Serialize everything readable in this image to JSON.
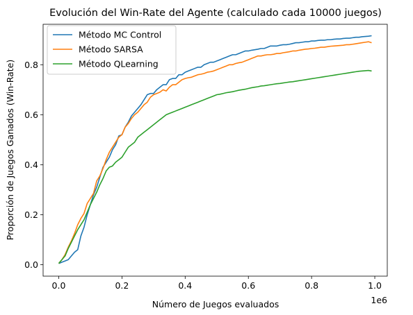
{
  "chart_data": {
    "type": "line",
    "title": "Evolución del Win-Rate del Agente (calculado cada 10000 juegos)",
    "xlabel": "Número de Juegos evaluados",
    "ylabel": "Proporción de Juegos Ganados (Win-Rate)",
    "x_offset_label": "1e6",
    "xlim": [
      -0.0495,
      1.0395
    ],
    "ylim": [
      -0.0458,
      0.9618
    ],
    "xticks": [
      0.0,
      0.2,
      0.4,
      0.6,
      0.8,
      1.0
    ],
    "xtick_labels": [
      "0.0",
      "0.2",
      "0.4",
      "0.6",
      "0.8",
      "1.0"
    ],
    "yticks": [
      0.0,
      0.2,
      0.4,
      0.6,
      0.8
    ],
    "ytick_labels": [
      "0.0",
      "0.2",
      "0.4",
      "0.6",
      "0.8"
    ],
    "grid": false,
    "legend_position": "top-left",
    "x": [
      0,
      0.01,
      0.02,
      0.03,
      0.04,
      0.05,
      0.06,
      0.07,
      0.08,
      0.09,
      0.1,
      0.11,
      0.12,
      0.13,
      0.14,
      0.15,
      0.16,
      0.17,
      0.18,
      0.19,
      0.2,
      0.21,
      0.22,
      0.23,
      0.24,
      0.25,
      0.26,
      0.27,
      0.28,
      0.29,
      0.3,
      0.31,
      0.32,
      0.33,
      0.34,
      0.35,
      0.36,
      0.37,
      0.38,
      0.39,
      0.4,
      0.41,
      0.42,
      0.43,
      0.44,
      0.45,
      0.46,
      0.47,
      0.48,
      0.49,
      0.5,
      0.51,
      0.52,
      0.53,
      0.54,
      0.55,
      0.56,
      0.57,
      0.58,
      0.59,
      0.6,
      0.61,
      0.62,
      0.63,
      0.64,
      0.65,
      0.66,
      0.67,
      0.68,
      0.69,
      0.7,
      0.71,
      0.72,
      0.73,
      0.74,
      0.75,
      0.76,
      0.77,
      0.78,
      0.79,
      0.8,
      0.81,
      0.82,
      0.83,
      0.84,
      0.85,
      0.86,
      0.87,
      0.88,
      0.89,
      0.9,
      0.91,
      0.92,
      0.93,
      0.94,
      0.95,
      0.96,
      0.97,
      0.98,
      0.99
    ],
    "series": [
      {
        "name": "Método MC Control",
        "color": "#1f77b4",
        "values": [
          0.005,
          0.01,
          0.015,
          0.02,
          0.035,
          0.05,
          0.06,
          0.115,
          0.15,
          0.2,
          0.24,
          0.28,
          0.31,
          0.35,
          0.39,
          0.41,
          0.43,
          0.46,
          0.48,
          0.515,
          0.52,
          0.55,
          0.57,
          0.595,
          0.61,
          0.625,
          0.64,
          0.66,
          0.68,
          0.685,
          0.685,
          0.7,
          0.71,
          0.72,
          0.72,
          0.74,
          0.745,
          0.745,
          0.76,
          0.76,
          0.77,
          0.775,
          0.78,
          0.785,
          0.79,
          0.79,
          0.8,
          0.805,
          0.81,
          0.81,
          0.815,
          0.82,
          0.825,
          0.83,
          0.835,
          0.84,
          0.84,
          0.845,
          0.85,
          0.855,
          0.855,
          0.858,
          0.86,
          0.862,
          0.865,
          0.865,
          0.87,
          0.875,
          0.875,
          0.875,
          0.878,
          0.88,
          0.88,
          0.882,
          0.885,
          0.888,
          0.888,
          0.89,
          0.892,
          0.892,
          0.895,
          0.895,
          0.897,
          0.898,
          0.898,
          0.9,
          0.9,
          0.902,
          0.903,
          0.903,
          0.905,
          0.906,
          0.906,
          0.908,
          0.91,
          0.91,
          0.912,
          0.913,
          0.914,
          0.916
        ]
      },
      {
        "name": "Método SARSA",
        "color": "#ff7f0e",
        "values": [
          0.005,
          0.02,
          0.04,
          0.07,
          0.095,
          0.125,
          0.16,
          0.185,
          0.205,
          0.245,
          0.265,
          0.285,
          0.335,
          0.355,
          0.385,
          0.42,
          0.45,
          0.47,
          0.49,
          0.51,
          0.52,
          0.55,
          0.565,
          0.585,
          0.6,
          0.61,
          0.625,
          0.64,
          0.65,
          0.67,
          0.68,
          0.685,
          0.69,
          0.7,
          0.695,
          0.71,
          0.72,
          0.72,
          0.73,
          0.74,
          0.745,
          0.748,
          0.75,
          0.755,
          0.76,
          0.762,
          0.765,
          0.77,
          0.772,
          0.775,
          0.78,
          0.785,
          0.79,
          0.795,
          0.8,
          0.8,
          0.805,
          0.808,
          0.81,
          0.815,
          0.82,
          0.825,
          0.83,
          0.835,
          0.835,
          0.838,
          0.84,
          0.84,
          0.842,
          0.845,
          0.845,
          0.848,
          0.85,
          0.852,
          0.855,
          0.855,
          0.858,
          0.86,
          0.862,
          0.863,
          0.865,
          0.866,
          0.868,
          0.87,
          0.87,
          0.872,
          0.874,
          0.875,
          0.876,
          0.877,
          0.878,
          0.88,
          0.88,
          0.882,
          0.884,
          0.886,
          0.888,
          0.89,
          0.892,
          0.888
        ]
      },
      {
        "name": "Método QLearning",
        "color": "#2ca02c",
        "values": [
          0.005,
          0.02,
          0.035,
          0.065,
          0.09,
          0.115,
          0.14,
          0.16,
          0.18,
          0.21,
          0.24,
          0.265,
          0.29,
          0.32,
          0.345,
          0.375,
          0.39,
          0.395,
          0.41,
          0.42,
          0.43,
          0.45,
          0.47,
          0.48,
          0.49,
          0.51,
          0.52,
          0.53,
          0.54,
          0.55,
          0.56,
          0.57,
          0.58,
          0.59,
          0.6,
          0.605,
          0.61,
          0.615,
          0.62,
          0.625,
          0.63,
          0.635,
          0.64,
          0.645,
          0.65,
          0.655,
          0.66,
          0.665,
          0.67,
          0.675,
          0.68,
          0.682,
          0.685,
          0.688,
          0.69,
          0.692,
          0.695,
          0.698,
          0.7,
          0.702,
          0.705,
          0.708,
          0.71,
          0.712,
          0.715,
          0.716,
          0.718,
          0.72,
          0.722,
          0.724,
          0.725,
          0.727,
          0.729,
          0.731,
          0.732,
          0.734,
          0.736,
          0.738,
          0.74,
          0.742,
          0.744,
          0.746,
          0.748,
          0.75,
          0.752,
          0.754,
          0.756,
          0.758,
          0.76,
          0.762,
          0.764,
          0.766,
          0.768,
          0.77,
          0.772,
          0.774,
          0.775,
          0.776,
          0.777,
          0.775
        ]
      }
    ]
  }
}
